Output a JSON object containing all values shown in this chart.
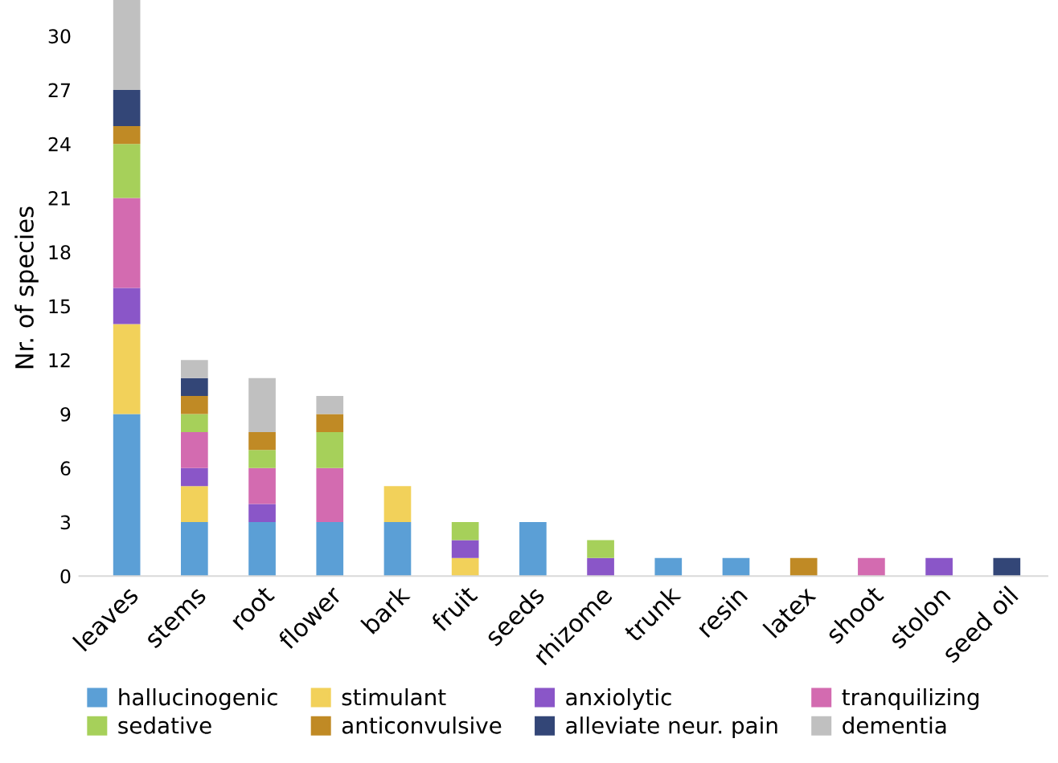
{
  "chart_data": {
    "type": "bar",
    "stacked": true,
    "ylabel": "Nr. of species",
    "categories": [
      "leaves",
      "stems",
      "root",
      "flower",
      "bark",
      "fruit",
      "seeds",
      "rhizome",
      "trunk",
      "resin",
      "latex",
      "shoot",
      "stolon",
      "seed oil"
    ],
    "series": [
      {
        "name": "hallucinogenic",
        "color": "#5b9fd6",
        "values": [
          9,
          3,
          3,
          3,
          3,
          0,
          3,
          0,
          1,
          1,
          0,
          0,
          0,
          0
        ]
      },
      {
        "name": "stimulant",
        "color": "#f2d15a",
        "values": [
          5,
          2,
          0,
          0,
          2,
          1,
          0,
          0,
          0,
          0,
          0,
          0,
          0,
          0
        ]
      },
      {
        "name": "anxiolytic",
        "color": "#8a56c8",
        "values": [
          2,
          1,
          1,
          0,
          0,
          1,
          0,
          1,
          0,
          0,
          0,
          0,
          1,
          0
        ]
      },
      {
        "name": "tranquilizing",
        "color": "#d36bb0",
        "values": [
          5,
          2,
          2,
          3,
          0,
          0,
          0,
          0,
          0,
          0,
          0,
          1,
          0,
          0
        ]
      },
      {
        "name": "sedative",
        "color": "#a6d05a",
        "values": [
          3,
          1,
          1,
          2,
          0,
          1,
          0,
          1,
          0,
          0,
          0,
          0,
          0,
          0
        ]
      },
      {
        "name": "anticonvulsive",
        "color": "#c08a25",
        "values": [
          1,
          1,
          1,
          1,
          0,
          0,
          0,
          0,
          0,
          0,
          1,
          0,
          0,
          0
        ]
      },
      {
        "name": "alleviate neur. pain",
        "color": "#334677",
        "values": [
          2,
          1,
          0,
          0,
          0,
          0,
          0,
          0,
          0,
          0,
          0,
          0,
          0,
          1
        ]
      },
      {
        "name": "dementia",
        "color": "#c0c0c0",
        "values": [
          5,
          1,
          3,
          1,
          0,
          0,
          0,
          0,
          0,
          0,
          0,
          0,
          0,
          0
        ]
      }
    ],
    "ylim": [
      0,
      32
    ],
    "yticks": [
      0,
      3,
      6,
      9,
      12,
      15,
      18,
      21,
      24,
      27,
      30
    ],
    "grid": false,
    "legend": "bottom"
  }
}
